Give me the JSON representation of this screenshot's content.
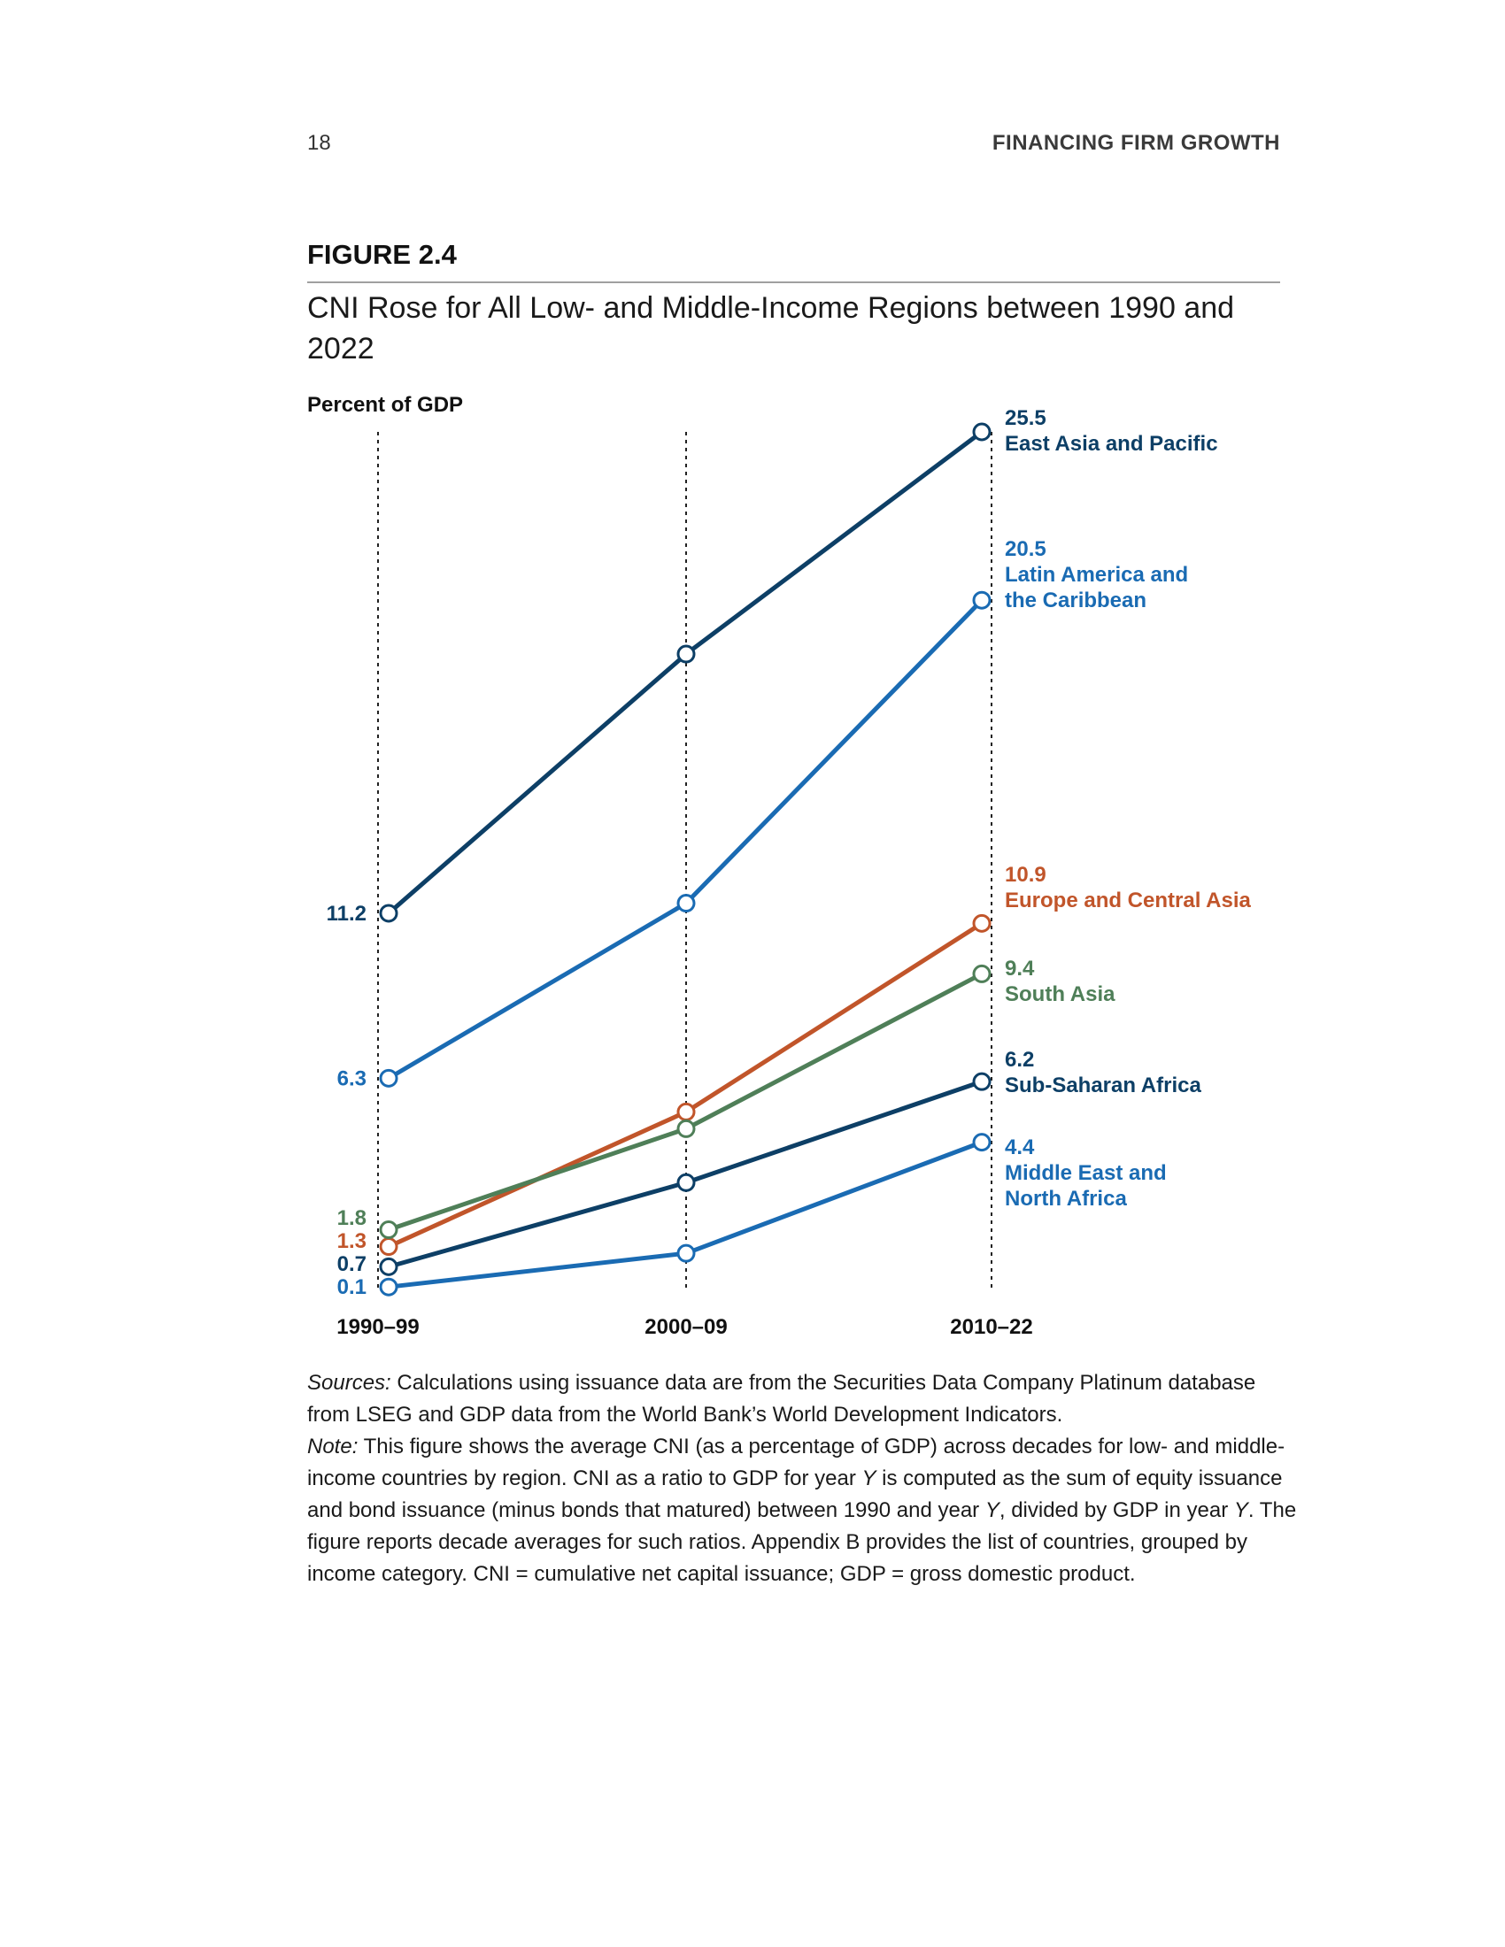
{
  "header": {
    "page_number": "18",
    "running_head": "FINANCING FIRM GROWTH"
  },
  "figure": {
    "label": "FIGURE 2.4",
    "title": "CNI Rose for All Low- and Middle-Income Regions between 1990 and 2022"
  },
  "chart_data": {
    "type": "line",
    "ylabel": "Percent of GDP",
    "xlabel": "",
    "categories": [
      "1990–99",
      "2000–09",
      "2010–22"
    ],
    "ylim": [
      0,
      25.5
    ],
    "grid": "vertical dotted lines at each period",
    "series": [
      {
        "name": "East Asia and Pacific",
        "name_lines": [
          "East Asia and Pacific"
        ],
        "values": [
          11.2,
          18.9,
          25.5
        ],
        "labels": [
          "11.2",
          "",
          "25.5"
        ],
        "color": "#0d3f66"
      },
      {
        "name": "Latin America and the Caribbean",
        "name_lines": [
          "Latin America and",
          "the Caribbean"
        ],
        "values": [
          6.3,
          11.5,
          20.5
        ],
        "labels": [
          "6.3",
          "",
          "20.5"
        ],
        "color": "#1a6bb3"
      },
      {
        "name": "Europe and Central Asia",
        "name_lines": [
          "Europe and Central Asia"
        ],
        "values": [
          1.3,
          5.3,
          10.9
        ],
        "labels": [
          "1.3",
          "",
          "10.9"
        ],
        "color": "#c1552a"
      },
      {
        "name": "South Asia",
        "name_lines": [
          "South Asia"
        ],
        "values": [
          1.8,
          4.8,
          9.4
        ],
        "labels": [
          "1.8",
          "",
          "9.4"
        ],
        "color": "#4f7f58"
      },
      {
        "name": "Sub-Saharan Africa",
        "name_lines": [
          "Sub-Saharan Africa"
        ],
        "values": [
          0.7,
          3.2,
          6.2
        ],
        "labels": [
          "0.7",
          "",
          "6.2"
        ],
        "color": "#0d3f66"
      },
      {
        "name": "Middle East and North Africa",
        "name_lines": [
          "Middle East and",
          "North Africa"
        ],
        "values": [
          0.1,
          1.1,
          4.4
        ],
        "labels": [
          "0.1",
          "",
          "4.4"
        ],
        "color": "#1a6bb3"
      }
    ]
  },
  "notes": {
    "sources_label": "Sources:",
    "sources_text": " Calculations using issuance data are from the Securities Data Company Platinum database from LSEG and GDP data from the World Bank’s World Development Indicators.",
    "note_label": "Note:",
    "note_part1": " This figure shows the average CNI (as a percentage of GDP) across decades for low- and middle-income countries by region. CNI as a ratio to GDP for year ",
    "note_var1": "Y",
    "note_part2": " is computed as the sum of equity issuance and bond issuance (minus bonds that matured) between 1990 and year ",
    "note_var2": "Y",
    "note_part3": ", divided by GDP in year ",
    "note_var3": "Y",
    "note_part4": ". The figure reports decade averages for such ratios. Appendix B provides the list of countries, grouped by income category. CNI = cumulative net capital issuance; GDP = gross domestic product."
  }
}
